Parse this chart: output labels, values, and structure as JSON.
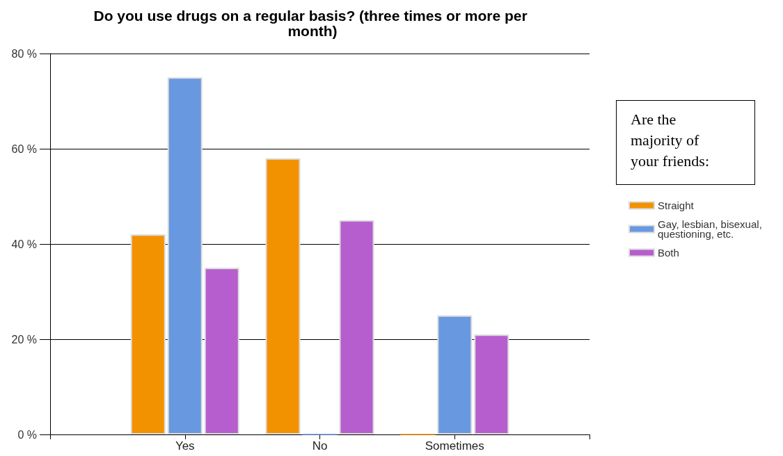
{
  "chart_data": {
    "type": "bar",
    "title": "Do you use drugs on a regular basis? (three times or more per month)",
    "categories": [
      "Yes",
      "No",
      "Sometimes"
    ],
    "series": [
      {
        "name": "Straight",
        "color": "#f39200",
        "values": [
          42,
          58,
          0
        ]
      },
      {
        "name": "Gay, lesbian, bisexual, questioning, etc.",
        "color": "#6898e0",
        "values": [
          75,
          0,
          25
        ]
      },
      {
        "name": "Both",
        "color": "#b65ecd",
        "values": [
          35,
          45,
          21
        ]
      }
    ],
    "ylim": [
      0,
      80
    ],
    "yticks": [
      {
        "value": 0,
        "label": "0 %"
      },
      {
        "value": 20,
        "label": "20 %"
      },
      {
        "value": 40,
        "label": "40 %"
      },
      {
        "value": 60,
        "label": "60 %"
      },
      {
        "value": 80,
        "label": "80 %"
      }
    ],
    "grid": "y",
    "legend": "right",
    "legend_title": "Are the majority of your friends:"
  }
}
